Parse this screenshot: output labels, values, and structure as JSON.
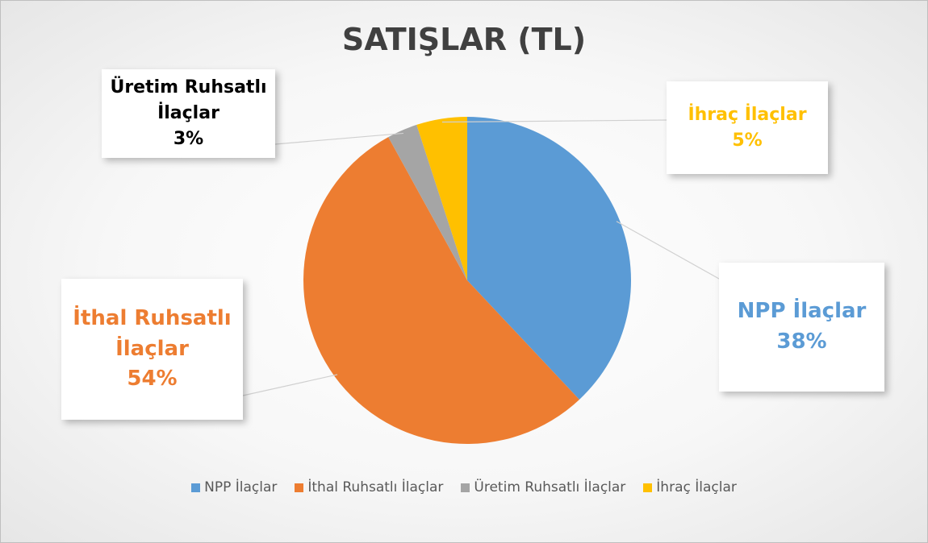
{
  "chart_data": {
    "type": "pie",
    "title": "SATIŞLAR (TL)",
    "categories": [
      "NPP İlaçlar",
      "İthal Ruhsatlı İlaçlar",
      "Üretim Ruhsatlı İlaçlar",
      "İhraç İlaçlar"
    ],
    "values": [
      38,
      54,
      3,
      5
    ],
    "value_labels": [
      "38%",
      "54%",
      "3%",
      "5%"
    ],
    "colors": [
      "#5b9bd5",
      "#ed7d31",
      "#a5a5a5",
      "#ffc000"
    ],
    "legend": "bottom"
  }
}
